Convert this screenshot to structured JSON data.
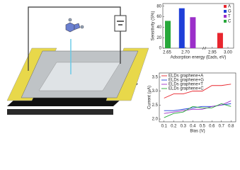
{
  "chart_data": [
    {
      "type": "bar",
      "xlabel": "Adsorption energy (Eads, eV)",
      "ylabel": "Sensitivity (S%)",
      "xlim": [
        2.65,
        3.0
      ],
      "axis_break": [
        2.75,
        2.93
      ],
      "xticks": [
        2.65,
        {
          "value": 2.7,
          "label": "2.70"
        },
        2.95,
        {
          "value": 3.0,
          "label": "3.00"
        }
      ],
      "ylim": [
        0,
        85
      ],
      "yticks": [
        0,
        20,
        40,
        60,
        80
      ],
      "legend": "upper right",
      "series": [
        {
          "name": "A",
          "color": "#e8262e",
          "x": [
            2.975
          ],
          "values": [
            29
          ]
        },
        {
          "name": "G",
          "color": "#1f3fd8",
          "x": [
            2.69
          ],
          "values": [
            76
          ]
        },
        {
          "name": "T",
          "color": "#9b2fc9",
          "x": [
            2.72
          ],
          "values": [
            59
          ]
        },
        {
          "name": "C",
          "color": "#27a83a",
          "x": [
            2.652
          ],
          "values": [
            52
          ]
        }
      ]
    },
    {
      "type": "line",
      "xlabel": "Bias (V)",
      "ylabel": "Current (μA)",
      "x": [
        0.1,
        0.2,
        0.3,
        0.4,
        0.5,
        0.6,
        0.7,
        0.8
      ],
      "xlim": [
        0.05,
        0.85
      ],
      "xticks": [
        0.1,
        0.2,
        0.3,
        0.4,
        0.5,
        0.6,
        0.7,
        0.8
      ],
      "ylim": [
        1.9,
        3.65
      ],
      "yticks": [
        {
          "value": 2.0,
          "label": "2.0"
        },
        2.5,
        {
          "value": 3.0,
          "label": "3.0"
        },
        3.5
      ],
      "legend": "upper left",
      "series": [
        {
          "name": "ELDs graphene+A",
          "color": "#e8262e",
          "values": [
            2.75,
            2.9,
            2.9,
            3.0,
            3.0,
            3.2,
            3.2,
            3.25
          ]
        },
        {
          "name": "ELDs graphene+G",
          "color": "#1f3fd8",
          "values": [
            2.3,
            2.3,
            2.35,
            2.4,
            2.45,
            2.45,
            2.5,
            2.55
          ]
        },
        {
          "name": "ELDs graphene+T",
          "color": "#9b2fc9",
          "values": [
            2.2,
            2.25,
            2.3,
            2.35,
            2.35,
            2.45,
            2.5,
            2.65
          ]
        },
        {
          "name": "ELDs graphene+C",
          "color": "#27a83a",
          "values": [
            2.05,
            2.2,
            2.25,
            2.45,
            2.4,
            2.4,
            2.55,
            2.45
          ]
        }
      ]
    }
  ]
}
